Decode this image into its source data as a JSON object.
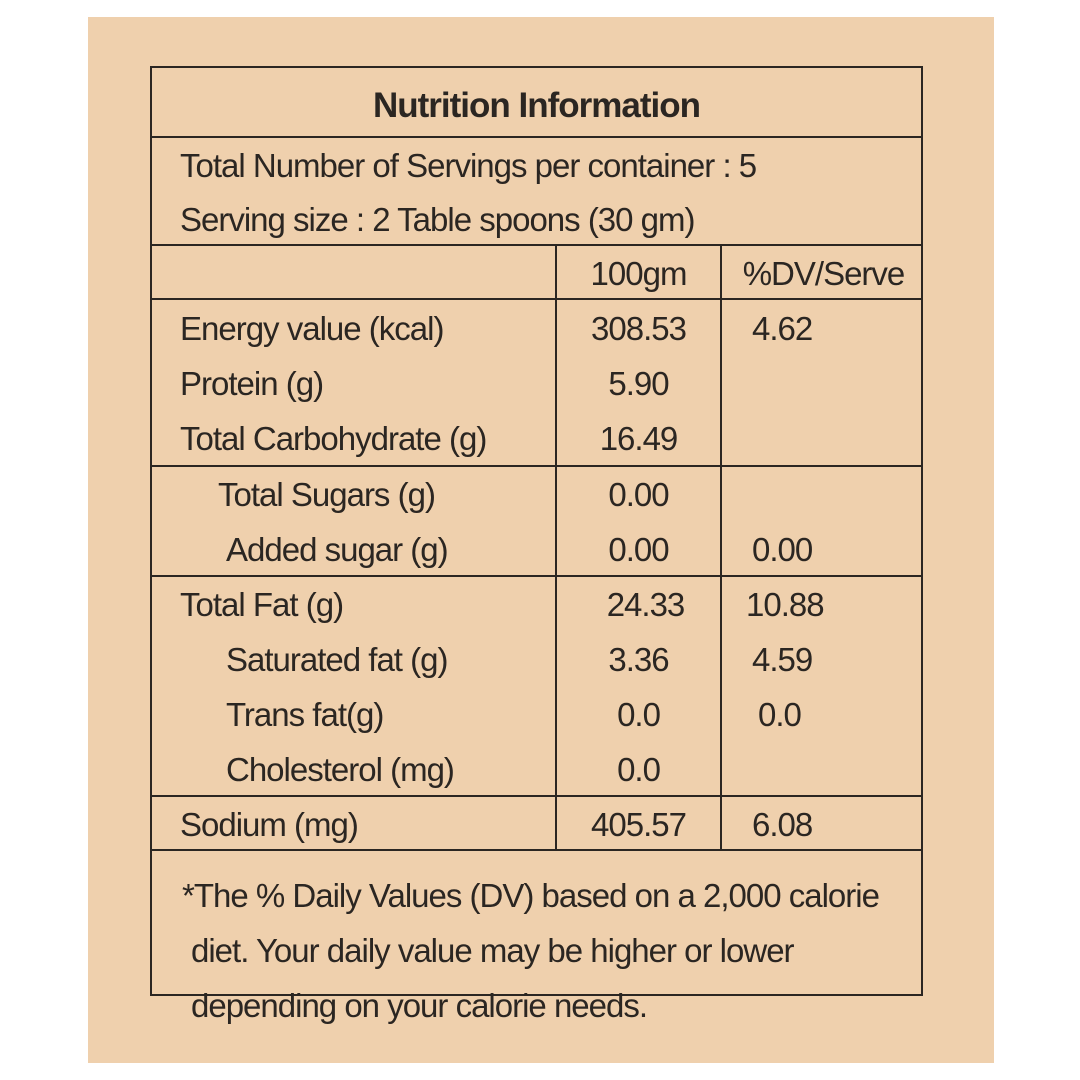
{
  "title": "Nutrition Information",
  "servings_line": "Total Number of Servings per container : 5",
  "serving_size_line": "Serving size :  2 Table spoons (30 gm)",
  "columns": {
    "per100": "100gm",
    "dv": "%DV/Serve"
  },
  "rows": [
    {
      "label": "Energy value (kcal)",
      "per100": "308.53",
      "dv": "4.62"
    },
    {
      "label": "Protein (g)",
      "per100": "5.90",
      "dv": ""
    },
    {
      "label": "Total Carbohydrate (g)",
      "per100": "16.49",
      "dv": ""
    },
    {
      "label": "Total Sugars (g)",
      "per100": "0.00",
      "dv": ""
    },
    {
      "label": "Added sugar (g)",
      "per100": "0.00",
      "dv": "0.00"
    },
    {
      "label": "Total Fat (g)",
      "per100": "24.33",
      "dv": "10.88"
    },
    {
      "label": "Saturated fat (g)",
      "per100": "3.36",
      "dv": "4.59"
    },
    {
      "label": "Trans fat(g)",
      "per100": "0.0",
      "dv": "0.0"
    },
    {
      "label": "Cholesterol (mg)",
      "per100": "0.0",
      "dv": ""
    },
    {
      "label": "Sodium (mg)",
      "per100": "405.57",
      "dv": "6.08"
    }
  ],
  "footnote": [
    "*The % Daily Values (DV) based on a 2,000 calorie",
    " diet. Your daily value may be higher or lower",
    " depending on your calorie needs."
  ],
  "colors": {
    "background": "#efd0ad",
    "ink": "#2b2622"
  }
}
